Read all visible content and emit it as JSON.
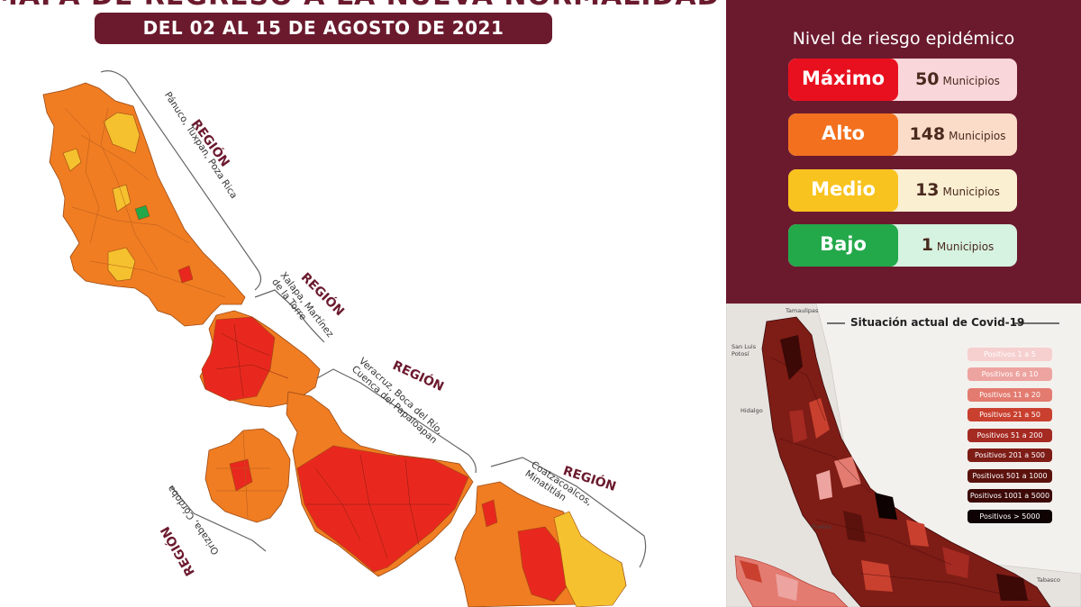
{
  "header": {
    "title": "MAPA DE REGRESO A LA NUEVA NORMALIDAD",
    "date_range": "DEL 02 AL 15 DE AGOSTO DE 2021"
  },
  "regions": [
    {
      "label": "REGIÓN",
      "sub": "Pánuco, Tuxpan, Poza Rica"
    },
    {
      "label": "REGIÓN",
      "sub": "Xalapa, Martínez de la Torre"
    },
    {
      "label": "REGIÓN",
      "sub": "Veracruz, Boca del Río, Cuenca del Papaloapan"
    },
    {
      "label": "REGIÓN",
      "sub": "Orizaba, Córdoba"
    },
    {
      "label": "REGIÓN",
      "sub": "Coatzacoalcos, Minatitlán"
    }
  ],
  "risk": {
    "title": "Nivel de riesgo epidémico",
    "levels": [
      {
        "name": "Máximo",
        "count": "50",
        "unit": "Municipios",
        "color": "#e8101e",
        "bg": "#f9d6da"
      },
      {
        "name": "Alto",
        "count": "148",
        "unit": "Municipios",
        "color": "#f2701e",
        "bg": "#fbdcc8"
      },
      {
        "name": "Medio",
        "count": "13",
        "unit": "Municipios",
        "color": "#f8c31e",
        "bg": "#fbefd2"
      },
      {
        "name": "Bajo",
        "count": "1",
        "unit": "Municipios",
        "color": "#23a84a",
        "bg": "#d6f2e0"
      }
    ]
  },
  "covid": {
    "title": "Situación actual de Covid-19",
    "legend": [
      {
        "label": "Positivos 1 a 5",
        "color": "#f6cfcf"
      },
      {
        "label": "Positivos 6 a 10",
        "color": "#eda4a0"
      },
      {
        "label": "Positivos 11 a 20",
        "color": "#e37b70"
      },
      {
        "label": "Positivos 21 a 50",
        "color": "#c9402f"
      },
      {
        "label": "Positivos 51 a 200",
        "color": "#a52a22"
      },
      {
        "label": "Positivos 201 a 500",
        "color": "#7e1c16"
      },
      {
        "label": "Positivos 501 a 1000",
        "color": "#5b120d"
      },
      {
        "label": "Positivos 1001 a 5000",
        "color": "#3c0907"
      },
      {
        "label": "Positivos > 5000",
        "color": "#0e0202"
      }
    ],
    "places": [
      "Tamaulipas",
      "San Luis Potosí",
      "Hidalgo",
      "Puebla",
      "Tabasco"
    ]
  }
}
